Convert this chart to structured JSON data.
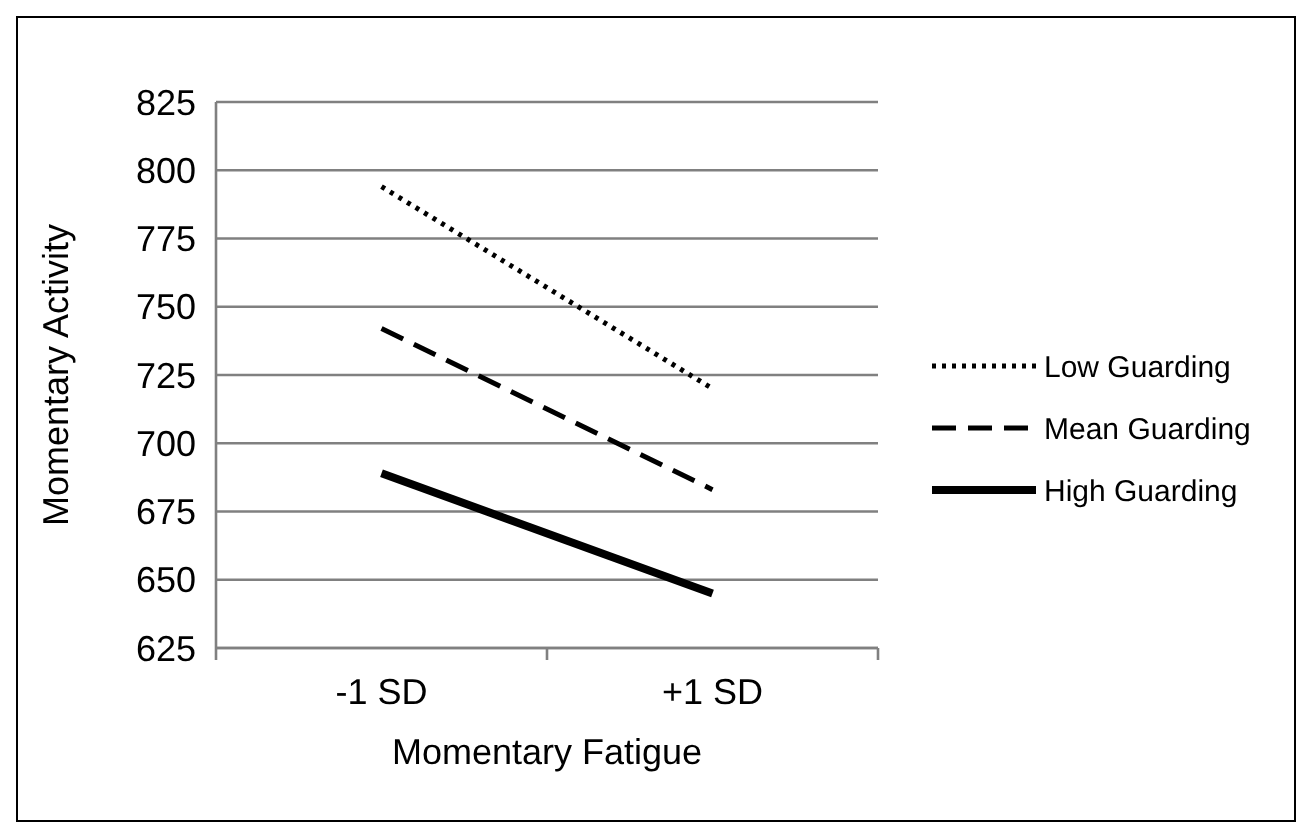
{
  "chart_data": {
    "type": "line",
    "xlabel": "Momentary Fatigue",
    "ylabel": "Momentary Activity",
    "categories": [
      "-1 SD",
      "+1 SD"
    ],
    "series": [
      {
        "name": "Low Guarding",
        "color": "#000000",
        "values": [
          794,
          720
        ],
        "line_style": "dotted"
      },
      {
        "name": "Mean Guarding",
        "color": "#000000",
        "values": [
          742,
          683
        ],
        "line_style": "dashed"
      },
      {
        "name": "High Guarding",
        "color": "#000000",
        "values": [
          689,
          645
        ],
        "line_style": "solid"
      }
    ],
    "ylim": [
      625,
      825
    ],
    "yticks": [
      625,
      650,
      675,
      700,
      725,
      750,
      775,
      800,
      825
    ],
    "grid": "y",
    "legend": "right",
    "marker": "none"
  }
}
